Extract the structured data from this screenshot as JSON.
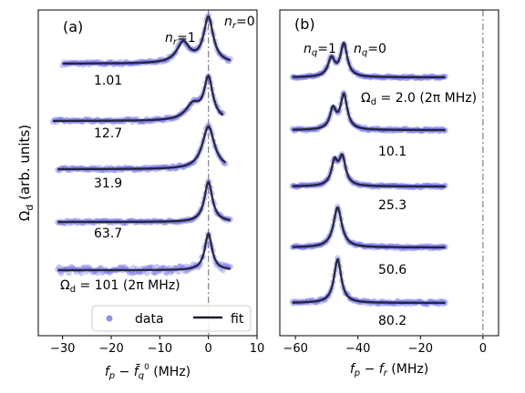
{
  "figure": {
    "ylabel_text": "Ω",
    "ylabel_sub": "d",
    "ylabel_rest": " (arb. units)"
  },
  "legend": {
    "data_label": "data",
    "fit_label": "fit"
  },
  "colors": {
    "data": "#6a6aee",
    "fit": "#1c1c2c",
    "vline": "#8a8a8a"
  },
  "chart_data": [
    {
      "type": "line",
      "panel_label": "(a)",
      "xlabel": "f_p − f̄_q^0 (MHz)",
      "xlim": [
        -35,
        10
      ],
      "xticks": [
        -30,
        -20,
        -10,
        0,
        10
      ],
      "xtick_labels": [
        "−30",
        "−20",
        "−10",
        "0",
        "10"
      ],
      "vline_x": 0,
      "annotations": [
        {
          "id": "nr1",
          "letter": "n",
          "sub": "r",
          "rest": "=1"
        },
        {
          "id": "nr0",
          "letter": "n",
          "sub": "r",
          "rest": "=0"
        }
      ],
      "offset_labels": [
        "1.01",
        "12.7",
        "31.9",
        "63.7"
      ],
      "bottom_label": {
        "letter": "Ω",
        "sub": "d",
        "rest": " = 101 (2π MHz)"
      },
      "series": [
        {
          "label": "1.01",
          "x_range": [
            -30,
            4.5
          ],
          "peaks": [
            {
              "x": 0,
              "amp": 1.0,
              "width": 1.2
            },
            {
              "x": -5.2,
              "amp": 0.45,
              "width": 1.6
            }
          ]
        },
        {
          "label": "12.7",
          "x_range": [
            -32,
            3
          ],
          "peaks": [
            {
              "x": 0,
              "amp": 0.95,
              "width": 1.1
            },
            {
              "x": -3.2,
              "amp": 0.35,
              "width": 1.8
            }
          ]
        },
        {
          "label": "31.9",
          "x_range": [
            -31,
            3.5
          ],
          "peaks": [
            {
              "x": 0,
              "amp": 1.0,
              "width": 1.5
            }
          ]
        },
        {
          "label": "63.7",
          "x_range": [
            -31,
            4.5
          ],
          "peaks": [
            {
              "x": 0,
              "amp": 1.0,
              "width": 1.0
            }
          ]
        },
        {
          "label": "101",
          "x_range": [
            -31,
            4.5
          ],
          "peaks": [
            {
              "x": 0,
              "amp": 1.0,
              "width": 0.9
            }
          ]
        }
      ]
    },
    {
      "type": "line",
      "panel_label": "(b)",
      "xlabel": "f_p − f_r (MHz)",
      "xlim": [
        -65,
        5
      ],
      "xticks": [
        -60,
        -40,
        -20,
        0
      ],
      "xtick_labels": [
        "−60",
        "−40",
        "−20",
        "0"
      ],
      "vline_x": 0,
      "annotations": [
        {
          "id": "nq1",
          "letter": "n",
          "sub": "q",
          "rest": "=1"
        },
        {
          "id": "nq0",
          "letter": "n",
          "sub": "q",
          "rest": "=0"
        }
      ],
      "offset_labels": [
        "10.1",
        "25.3",
        "50.6",
        "80.2"
      ],
      "top_label": {
        "letter": "Ω",
        "sub": "d",
        "rest": " = 2.0 (2π MHz)"
      },
      "series": [
        {
          "label": "2.0",
          "x_range": [
            -61,
            -12
          ],
          "peaks": [
            {
              "x": -48.5,
              "amp": 0.55,
              "width": 1.3
            },
            {
              "x": -44.5,
              "amp": 1.0,
              "width": 1.3
            }
          ]
        },
        {
          "label": "10.1",
          "x_range": [
            -61,
            -12
          ],
          "peaks": [
            {
              "x": -48,
              "amp": 0.55,
              "width": 1.2
            },
            {
              "x": -44.5,
              "amp": 0.95,
              "width": 1.3
            }
          ]
        },
        {
          "label": "25.3",
          "x_range": [
            -61,
            -12
          ],
          "peaks": [
            {
              "x": -47.5,
              "amp": 0.7,
              "width": 1.2
            },
            {
              "x": -45,
              "amp": 0.85,
              "width": 1.3
            }
          ]
        },
        {
          "label": "50.6",
          "x_range": [
            -61,
            -12
          ],
          "peaks": [
            {
              "x": -46.5,
              "amp": 1.0,
              "width": 1.6
            }
          ]
        },
        {
          "label": "80.2",
          "x_range": [
            -61,
            -12
          ],
          "peaks": [
            {
              "x": -46.5,
              "amp": 1.0,
              "width": 1.4
            }
          ]
        }
      ]
    }
  ]
}
